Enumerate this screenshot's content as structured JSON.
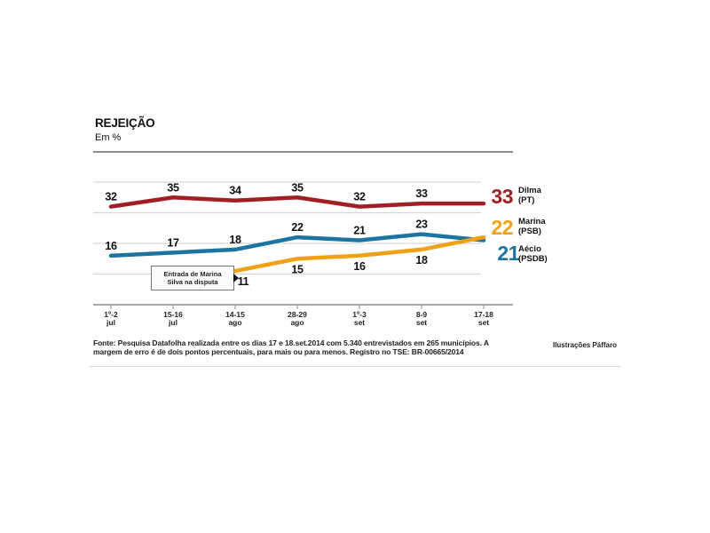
{
  "chart_data": {
    "type": "line",
    "title": "REJEIÇÃO",
    "subtitle": "Em %",
    "unit": "%",
    "categories": [
      {
        "days": "1º-2",
        "month": "jul"
      },
      {
        "days": "15-16",
        "month": "jul"
      },
      {
        "days": "14-15",
        "month": "ago"
      },
      {
        "days": "28-29",
        "month": "ago"
      },
      {
        "days": "1º-3",
        "month": "set"
      },
      {
        "days": "8-9",
        "month": "set"
      },
      {
        "days": "17-18",
        "month": "set"
      }
    ],
    "series": [
      {
        "name": "Dilma",
        "party": "(PT)",
        "color": "#a11e23",
        "values": [
          32,
          35,
          34,
          35,
          32,
          33,
          33
        ]
      },
      {
        "name": "Marina",
        "party": "(PSB)",
        "color": "#f0a216",
        "values": [
          null,
          null,
          11,
          15,
          16,
          18,
          22
        ]
      },
      {
        "name": "Aécio",
        "party": "(PSDB)",
        "color": "#1e74a0",
        "values": [
          16,
          17,
          18,
          22,
          21,
          23,
          21
        ]
      }
    ],
    "y_gridlines": [
      10,
      20,
      30,
      40
    ],
    "ylim": [
      0,
      45
    ],
    "legend_position": "right",
    "annotation": {
      "lines": [
        "Entrada de Marina",
        "Silva na disputa"
      ]
    }
  },
  "footer": {
    "source": "Fonte: Pesquisa Datafolha realizada entre os dias 17 e 18.set.2014 com 5.340 entrevistados em 265 municípios. A margem de erro é de dois pontos percentuais, para mais ou para menos. Registro no TSE: BR-00665/2014",
    "credit": "Ilustrações Páffaro"
  },
  "colors": {
    "grid": "#d6d6d6",
    "axis": "#8c8c8c",
    "text": "#111111"
  }
}
